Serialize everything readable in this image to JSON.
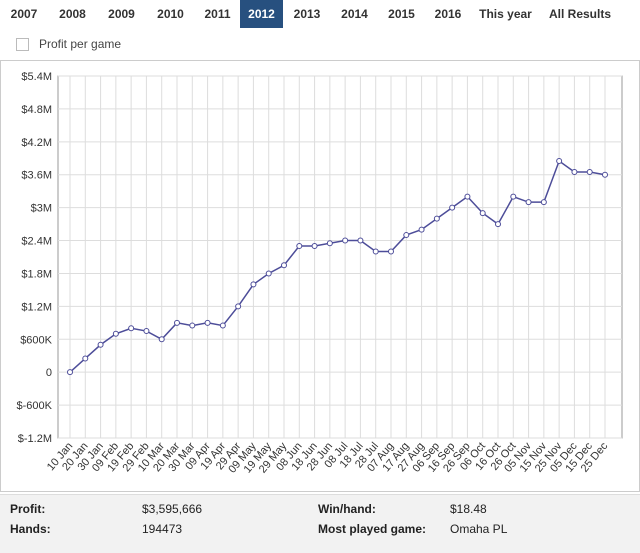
{
  "tabs": {
    "items": [
      "2007",
      "2008",
      "2009",
      "2010",
      "2011",
      "2012",
      "2013",
      "2014",
      "2015",
      "2016",
      "This year",
      "All Results"
    ],
    "selected": 5
  },
  "checkbox": {
    "label": "Profit per game",
    "checked": false
  },
  "chart_data": {
    "type": "line",
    "categories": [
      "10 Jan",
      "20 Jan",
      "30 Jan",
      "09 Feb",
      "19 Feb",
      "29 Feb",
      "10 Mar",
      "20 Mar",
      "30 Mar",
      "09 Apr",
      "19 Apr",
      "29 Apr",
      "09 May",
      "19 May",
      "29 May",
      "08 Jun",
      "18 Jun",
      "28 Jun",
      "08 Jul",
      "18 Jul",
      "28 Jul",
      "07 Aug",
      "17 Aug",
      "27 Aug",
      "06 Sep",
      "16 Sep",
      "26 Sep",
      "06 Oct",
      "16 Oct",
      "26 Oct",
      "05 Nov",
      "15 Nov",
      "25 Nov",
      "05 Dec",
      "15 Dec",
      "25 Dec"
    ],
    "series": [
      {
        "name": "Profit",
        "color": "#4d4d99",
        "values": [
          0,
          250000,
          500000,
          700000,
          800000,
          750000,
          600000,
          900000,
          850000,
          900000,
          850000,
          1200000,
          1600000,
          1800000,
          1950000,
          2300000,
          2300000,
          2350000,
          2400000,
          2400000,
          2200000,
          2200000,
          2500000,
          2600000,
          2800000,
          3000000,
          3200000,
          2900000,
          2700000,
          3200000,
          3100000,
          3100000,
          3850000,
          3650000,
          3650000,
          3600000
        ]
      }
    ],
    "ylim": [
      -1200000,
      5400000
    ],
    "yticks": [
      {
        "value": 5400000,
        "label": "$5.4M"
      },
      {
        "value": 4800000,
        "label": "$4.8M"
      },
      {
        "value": 4200000,
        "label": "$4.2M"
      },
      {
        "value": 3600000,
        "label": "$3.6M"
      },
      {
        "value": 3000000,
        "label": "$3M"
      },
      {
        "value": 2400000,
        "label": "$2.4M"
      },
      {
        "value": 1800000,
        "label": "$1.8M"
      },
      {
        "value": 1200000,
        "label": "$1.2M"
      },
      {
        "value": 600000,
        "label": "$600K"
      },
      0,
      {
        "value": -600000,
        "label": "$-600K"
      },
      {
        "value": -1200000,
        "label": "$-1.2M"
      }
    ],
    "grid": true
  },
  "stats": [
    [
      "Profit:",
      "$3,595,666",
      "Win/hand:",
      "$18.48"
    ],
    [
      "Hands:",
      "194473",
      "Most played game:",
      "Omaha PL"
    ]
  ]
}
